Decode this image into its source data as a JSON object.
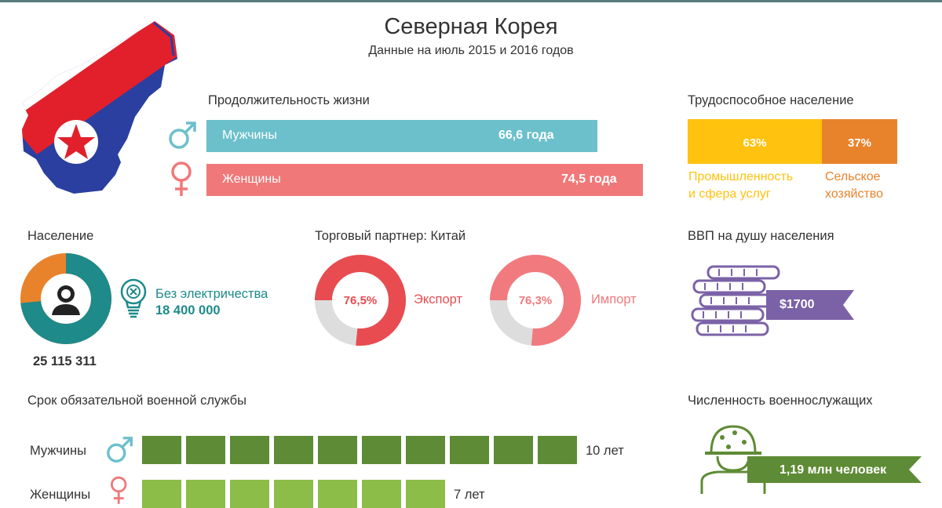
{
  "header": {
    "title": "Северная Корея",
    "subtitle": "Данные на июль 2015 и 2016 годов"
  },
  "colors": {
    "teal": "#6bc0cb",
    "coral": "#f07879",
    "yellow": "#ffc20e",
    "orange": "#e8832c",
    "dark_teal": "#1e8a8a",
    "pie_red": "#e84c50",
    "pie_pink": "#f07a7d",
    "pie_gray": "#dddddd",
    "purple": "#7b62a7",
    "green_dark": "#5e8b35",
    "green_light": "#8bbd48"
  },
  "life_expectancy": {
    "heading": "Продолжительность жизни",
    "rows": [
      {
        "icon": "male-symbol-icon",
        "label": "Мужчины",
        "value_text": "66,6 года",
        "value": 66.6
      },
      {
        "icon": "female-symbol-icon",
        "label": "Женщины",
        "value_text": "74,5 года",
        "value": 74.5
      }
    ]
  },
  "labor": {
    "heading": "Трудоспособное население",
    "segments": [
      {
        "pct_text": "63%",
        "pct": 63,
        "caption": [
          "Промышленность",
          "и сфера услуг"
        ],
        "color": "#ffc20e"
      },
      {
        "pct_text": "37%",
        "pct": 37,
        "caption": [
          "Сельское",
          "хозяйство"
        ],
        "color": "#e8832c"
      }
    ]
  },
  "population": {
    "heading": "Население",
    "total": "25 115 311",
    "no_electricity_label": "Без электричества",
    "no_electricity_value": "18 400 000",
    "no_electricity_share": 0.733
  },
  "trade": {
    "heading": "Торговый партнер: Китай",
    "items": [
      {
        "pct_text": "76,5%",
        "pct": 76.5,
        "label": "Экспорт",
        "color": "#e84c50"
      },
      {
        "pct_text": "76,3%",
        "pct": 76.3,
        "label": "Импорт",
        "color": "#f07a7d"
      }
    ]
  },
  "gdp": {
    "heading": "ВВП на душу населения",
    "value": "$1700"
  },
  "military_service": {
    "heading": "Срок обязательной военной службы",
    "rows": [
      {
        "icon": "male-symbol-icon",
        "label": "Мужчины",
        "value_text": "10 лет",
        "years": 10
      },
      {
        "icon": "female-symbol-icon",
        "label": "Женщины",
        "value_text": "7 лет",
        "years": 7
      }
    ]
  },
  "military_size": {
    "heading": "Численность военнослужащих",
    "value": "1,19 млн человек"
  },
  "chart_data": [
    {
      "type": "bar",
      "title": "Продолжительность жизни",
      "categories": [
        "Мужчины",
        "Женщины"
      ],
      "values": [
        66.6,
        74.5
      ]
    },
    {
      "type": "bar",
      "title": "Трудоспособное население",
      "categories": [
        "Промышленность и сфера услуг",
        "Сельское хозяйство"
      ],
      "values": [
        63,
        37
      ]
    },
    {
      "type": "pie",
      "title": "Торговый партнер: Китай",
      "categories": [
        "Экспорт",
        "Импорт"
      ],
      "values": [
        76.5,
        76.3
      ]
    },
    {
      "type": "bar",
      "title": "Срок обязательной военной службы",
      "categories": [
        "Мужчины",
        "Женщины"
      ],
      "values": [
        10,
        7
      ]
    }
  ]
}
